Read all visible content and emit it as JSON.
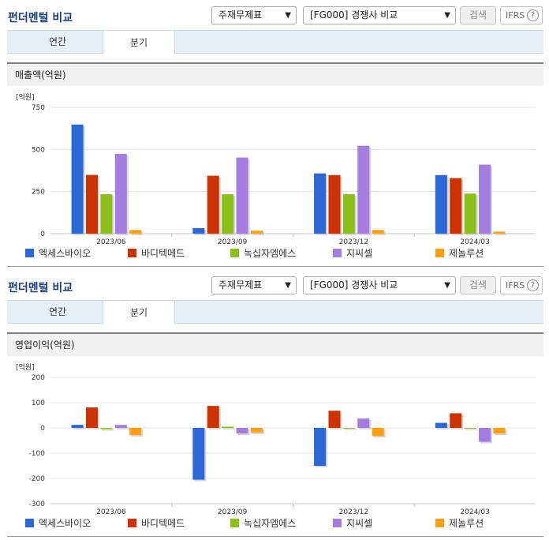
{
  "series_meta": [
    {
      "name": "엑세스바이오",
      "color": "#2b67d6"
    },
    {
      "name": "바디텍메드",
      "color": "#cc3300"
    },
    {
      "name": "녹십자엠에스",
      "color": "#8bc01a"
    },
    {
      "name": "지씨셀",
      "color": "#a57de0"
    },
    {
      "name": "제놀루션",
      "color": "#ff9f0f"
    }
  ],
  "panels": [
    {
      "title": "펀더멘털 비교",
      "select1": "주재무제표",
      "select2": "[FG000] 경쟁사 비교",
      "search_label": "검색",
      "ifrs_label": "IFRS",
      "help_icon": "?",
      "tabs": [
        "연간",
        "분기"
      ],
      "active_tab": 1,
      "section_title": "매출액(억원)",
      "chart_data": {
        "type": "bar",
        "unit_label": "[억원]",
        "categories": [
          "2023/06",
          "2023/09",
          "2023/12",
          "2024/03"
        ],
        "ylim": [
          0,
          750
        ],
        "yticks": [
          0,
          250,
          500,
          750
        ],
        "grid": true,
        "legend": "bottom",
        "series": [
          {
            "name": "엑세스바이오",
            "values": [
              648,
              33,
              358,
              348
            ]
          },
          {
            "name": "바디텍메드",
            "values": [
              349,
              344,
              348,
              330
            ]
          },
          {
            "name": "녹십자엠에스",
            "values": [
              234,
              234,
              234,
              238
            ]
          },
          {
            "name": "지씨셀",
            "values": [
              474,
              452,
              522,
              410
            ]
          },
          {
            "name": "제놀루션",
            "values": [
              22,
              18,
              22,
              12
            ]
          }
        ]
      }
    },
    {
      "title": "펀더멘털 비교",
      "select1": "주재무제표",
      "select2": "[FG000] 경쟁사 비교",
      "search_label": "검색",
      "ifrs_label": "IFRS",
      "help_icon": "?",
      "tabs": [
        "연간",
        "분기"
      ],
      "active_tab": 1,
      "section_title": "영업이익(억원)",
      "chart_data": {
        "type": "bar",
        "unit_label": "[억원]",
        "categories": [
          "2023/06",
          "2023/09",
          "2023/12",
          "2024/03"
        ],
        "ylim": [
          -300,
          200
        ],
        "yticks": [
          -300,
          -200,
          -100,
          0,
          100,
          200
        ],
        "grid": true,
        "legend": "bottom",
        "series": [
          {
            "name": "엑세스바이오",
            "values": [
              12,
              -205,
              -150,
              20
            ]
          },
          {
            "name": "바디텍메드",
            "values": [
              81,
              87,
              68,
              58
            ]
          },
          {
            "name": "녹십자엠에스",
            "values": [
              -5,
              5,
              0,
              0
            ]
          },
          {
            "name": "지씨셀",
            "values": [
              12,
              -22,
              37,
              -55
            ]
          },
          {
            "name": "제놀루션",
            "values": [
              -28,
              -18,
              -32,
              -22
            ]
          }
        ]
      }
    }
  ]
}
